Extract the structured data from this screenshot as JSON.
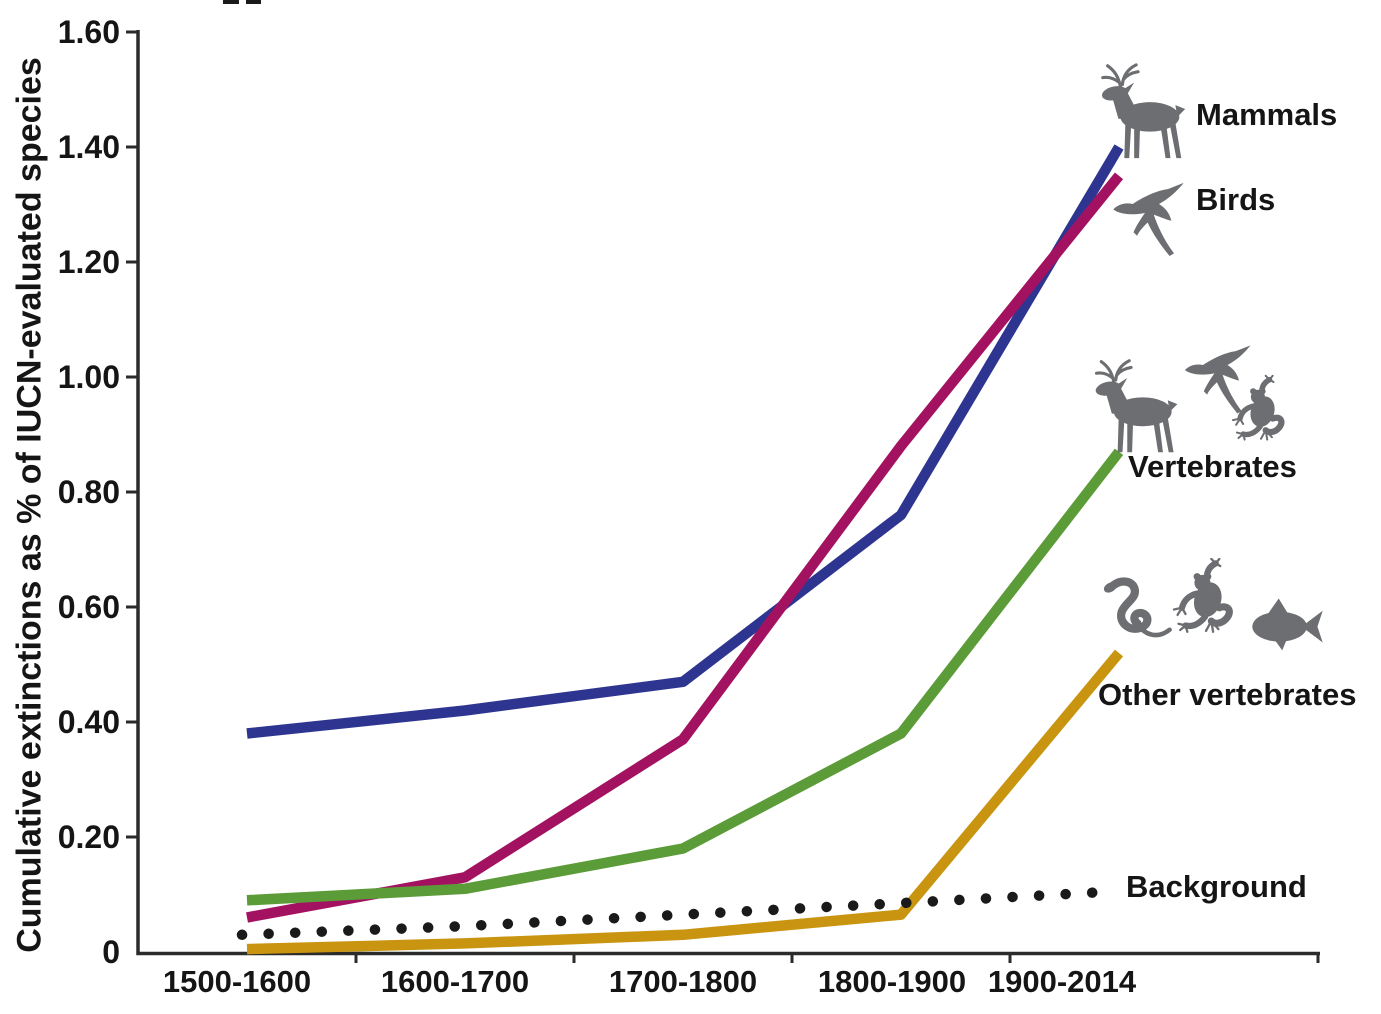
{
  "figure": {
    "background": "#ffffff",
    "icon_color": "#6d6e71",
    "axis_color": "#2b2b2b",
    "text_color": "#151515"
  },
  "y_axis": {
    "label": "Cumulative extinctions as % of IUCN-evaluated species",
    "tick_labels": [
      "1.60",
      "1.40",
      "1.20",
      "1.00",
      "0.80",
      "0.60",
      "0.40",
      "0.20",
      "0"
    ],
    "tick_values": [
      1.6,
      1.4,
      1.2,
      1.0,
      0.8,
      0.6,
      0.4,
      0.2,
      0
    ]
  },
  "x_axis": {
    "categories": [
      "1500-1600",
      "1600-1700",
      "1700-1800",
      "1800-1900",
      "1900-2014"
    ]
  },
  "legend": [
    {
      "label": "Mammals",
      "icons": [
        "deer-icon"
      ]
    },
    {
      "label": "Birds",
      "icons": [
        "swallow-icon"
      ]
    },
    {
      "label": "Vertebrates",
      "icons": [
        "deer-icon",
        "swallow-icon",
        "frog-icon"
      ]
    },
    {
      "label": "Other vertebrates",
      "icons": [
        "snake-icon",
        "frog-icon",
        "fish-icon"
      ]
    },
    {
      "label": "Background",
      "icons": []
    }
  ],
  "chart_data": {
    "type": "line",
    "title": "",
    "xlabel": "",
    "ylabel": "Cumulative extinctions as % of IUCN-evaluated species",
    "categories": [
      "1500-1600",
      "1600-1700",
      "1700-1800",
      "1800-1900",
      "1900-2014"
    ],
    "ylim": [
      0,
      1.6
    ],
    "grid": false,
    "legend_position": "right, beside line endpoints, with animal silhouettes",
    "series": [
      {
        "name": "Mammals",
        "color": "#2e3591",
        "style": "solid",
        "values": [
          0.38,
          0.42,
          0.47,
          0.76,
          1.4
        ]
      },
      {
        "name": "Birds",
        "color": "#a31260",
        "style": "solid",
        "values": [
          0.06,
          0.13,
          0.37,
          0.88,
          1.35
        ]
      },
      {
        "name": "Vertebrates",
        "color": "#5b9c38",
        "style": "solid",
        "values": [
          0.09,
          0.11,
          0.18,
          0.38,
          0.87
        ]
      },
      {
        "name": "Other vertebrates",
        "color": "#c9940f",
        "style": "solid",
        "values": [
          0.005,
          0.015,
          0.03,
          0.065,
          0.52
        ]
      },
      {
        "name": "Background",
        "color": "#1a1a1a",
        "style": "dotted",
        "values": [
          0.03,
          0.045,
          0.065,
          0.085,
          0.105
        ]
      }
    ]
  }
}
